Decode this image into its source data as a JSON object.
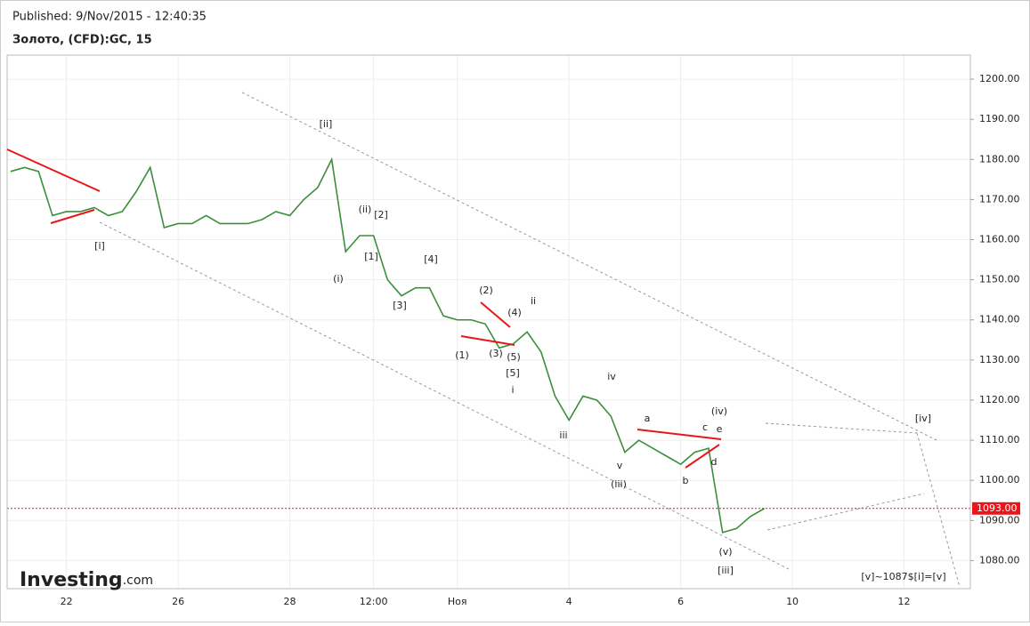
{
  "header": {
    "published": "Published: 9/Nov/2015 - 12:40:35",
    "instrument": "Золото, (CFD):GC, 15"
  },
  "logo": {
    "brand": "Investing",
    "suffix": ".com"
  },
  "chart_data": {
    "type": "line",
    "color": "#3a8f3a",
    "grid": true,
    "categories": [
      null,
      null,
      null,
      null,
      "22",
      null,
      null,
      null,
      null,
      null,
      null,
      null,
      "26",
      null,
      null,
      null,
      null,
      null,
      null,
      null,
      "28",
      null,
      null,
      null,
      null,
      null,
      "12:00",
      null,
      null,
      null,
      null,
      null,
      "Ноя",
      null,
      null,
      null,
      null,
      null,
      null,
      null,
      "4",
      null,
      null,
      null,
      null,
      null,
      null,
      null,
      "6",
      null,
      null,
      null,
      null,
      null,
      null,
      null,
      "10",
      null,
      null,
      null,
      null,
      null,
      null,
      null,
      "12",
      null,
      null,
      null,
      null
    ],
    "values": [
      1177,
      1178,
      1177,
      1166,
      1167,
      1167,
      1168,
      1166,
      1167,
      1172,
      1178,
      1163,
      1164,
      1164,
      1166,
      1164,
      1164,
      1164,
      1165,
      1167,
      1166,
      1170,
      1173,
      1180,
      1157,
      1161,
      1161,
      1150,
      1146,
      1148,
      1148,
      1141,
      1140,
      1140,
      1139,
      1133,
      1134,
      1137,
      1132,
      1121,
      1115,
      1121,
      1120,
      1116,
      1107,
      1110,
      1108,
      1106,
      1104,
      1107,
      1108,
      1087,
      1088,
      1091,
      1093,
      null,
      null,
      null,
      null,
      null,
      null,
      null,
      null,
      null,
      null,
      null,
      null,
      null,
      null
    ],
    "ylim": [
      1073,
      1206
    ],
    "yticks": [
      {
        "value": 1080,
        "label": "1080.00"
      },
      {
        "value": 1090,
        "label": "1090.00"
      },
      {
        "value": 1100,
        "label": "1100.00"
      },
      {
        "value": 1110,
        "label": "1110.00"
      },
      {
        "value": 1120,
        "label": "1120.00"
      },
      {
        "value": 1130,
        "label": "1130.00"
      },
      {
        "value": 1140,
        "label": "1140.00"
      },
      {
        "value": 1150,
        "label": "1150.00"
      },
      {
        "value": 1160,
        "label": "1160.00"
      },
      {
        "value": 1170,
        "label": "1170.00"
      },
      {
        "value": 1180,
        "label": "1180.00"
      },
      {
        "value": 1190,
        "label": "1190.00"
      },
      {
        "value": 1200,
        "label": "1200.00"
      }
    ],
    "current": {
      "value": 1093,
      "label": "1093.00"
    },
    "annotations": [
      "[ii]",
      "(ii)",
      "[2]",
      "[1]",
      "(i)",
      "[4]",
      "[3]",
      "[i]",
      "(2)",
      "(4)",
      "ii",
      "(1)",
      "(3)",
      "(5)",
      "[5]",
      "i",
      "iv",
      "iii",
      "v",
      "(iii)",
      "a",
      "c",
      "e",
      "(iv)",
      "d",
      "b",
      "(v)",
      "[iii]",
      "[iv]",
      "[v]~1087$[i]=[v]"
    ]
  }
}
